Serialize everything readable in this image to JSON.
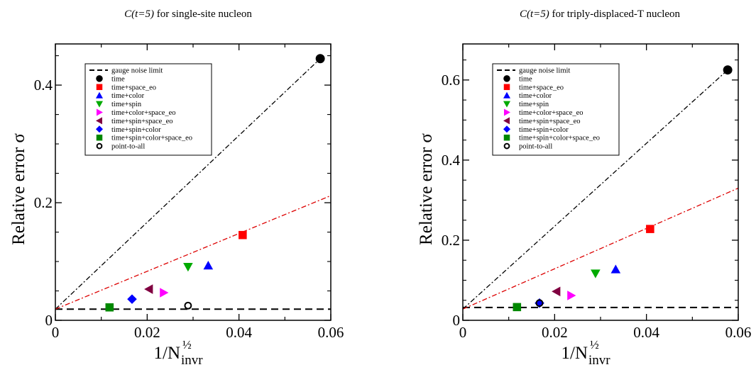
{
  "chart_data": [
    {
      "type": "scatter",
      "title": {
        "italic": "C(t=5)",
        "rest": " for single-site nucleon"
      },
      "xlabel": {
        "main": "1/N",
        "sup": "½",
        "sub": "invr"
      },
      "ylabel": {
        "main": "Relative error",
        "symbol": "σ"
      },
      "xlim": [
        0,
        0.06
      ],
      "ylim": [
        0,
        0.47
      ],
      "xticks": [
        "0",
        "0.02",
        "0.04",
        "0.06"
      ],
      "xtick_values": [
        0,
        0.02,
        0.04,
        0.06
      ],
      "yticks": [
        "0",
        "0.2",
        "0.4"
      ],
      "ytick_values": [
        0,
        0.2,
        0.4
      ],
      "legend_position": "top-left",
      "lines": [
        {
          "name": "gauge noise limit",
          "style": "dashed",
          "color": "#000000",
          "x": [
            0,
            0.06
          ],
          "y": [
            0.019,
            0.019
          ]
        },
        {
          "name": "",
          "style": "dashdot",
          "color": "#000000",
          "x": [
            0,
            0.0577
          ],
          "y": [
            0.019,
            0.445
          ]
        },
        {
          "name": "",
          "style": "dashdot",
          "color": "#dd0000",
          "x": [
            0,
            0.06
          ],
          "y": [
            0.019,
            0.212
          ]
        }
      ],
      "series": [
        {
          "name": "time",
          "marker": "circle",
          "color": "#000000",
          "x": [
            0.0577
          ],
          "y": [
            0.445
          ]
        },
        {
          "name": "time+space_eo",
          "marker": "square",
          "color": "#ff0000",
          "x": [
            0.0408
          ],
          "y": [
            0.145
          ]
        },
        {
          "name": "time+color",
          "marker": "triangle-up",
          "color": "#0000ff",
          "x": [
            0.0333
          ],
          "y": [
            0.093
          ]
        },
        {
          "name": "time+spin",
          "marker": "triangle-down",
          "color": "#00aa00",
          "x": [
            0.0289
          ],
          "y": [
            0.091
          ]
        },
        {
          "name": "time+color+space_eo",
          "marker": "triangle-right",
          "color": "#ff00ff",
          "x": [
            0.0236
          ],
          "y": [
            0.047
          ]
        },
        {
          "name": "time+spin+space_eo",
          "marker": "triangle-left",
          "color": "#800040",
          "x": [
            0.0204
          ],
          "y": [
            0.053
          ]
        },
        {
          "name": "time+spin+color",
          "marker": "diamond",
          "color": "#0000ff",
          "x": [
            0.0167
          ],
          "y": [
            0.036
          ]
        },
        {
          "name": "time+spin+color+space_eo",
          "marker": "square",
          "color": "#008800",
          "x": [
            0.0118
          ],
          "y": [
            0.022
          ]
        },
        {
          "name": "point-to-all",
          "marker": "circle-open",
          "color": "#000000",
          "x": [
            0.0289
          ],
          "y": [
            0.025
          ]
        }
      ]
    },
    {
      "type": "scatter",
      "title": {
        "italic": "C(t=5)",
        "rest": " for triply-displaced-T nucleon"
      },
      "xlabel": {
        "main": "1/N",
        "sup": "½",
        "sub": "invr"
      },
      "ylabel": {
        "main": "Relative error",
        "symbol": "σ"
      },
      "xlim": [
        0,
        0.06
      ],
      "ylim": [
        0,
        0.69
      ],
      "xticks": [
        "0",
        "0.02",
        "0.04",
        "0.06"
      ],
      "xtick_values": [
        0,
        0.02,
        0.04,
        0.06
      ],
      "yticks": [
        "0",
        "0.2",
        "0.4",
        "0.6"
      ],
      "ytick_values": [
        0,
        0.2,
        0.4,
        0.6
      ],
      "legend_position": "top-left",
      "lines": [
        {
          "name": "gauge noise limit",
          "style": "dashed",
          "color": "#000000",
          "x": [
            0,
            0.06
          ],
          "y": [
            0.032,
            0.032
          ]
        },
        {
          "name": "",
          "style": "dashdot",
          "color": "#000000",
          "x": [
            0,
            0.0577
          ],
          "y": [
            0.028,
            0.625
          ]
        },
        {
          "name": "",
          "style": "dashdot",
          "color": "#dd0000",
          "x": [
            0,
            0.06
          ],
          "y": [
            0.028,
            0.33
          ]
        }
      ],
      "series": [
        {
          "name": "time",
          "marker": "circle",
          "color": "#000000",
          "x": [
            0.0577
          ],
          "y": [
            0.625
          ]
        },
        {
          "name": "time+space_eo",
          "marker": "square",
          "color": "#ff0000",
          "x": [
            0.0408
          ],
          "y": [
            0.228
          ]
        },
        {
          "name": "time+color",
          "marker": "triangle-up",
          "color": "#0000ff",
          "x": [
            0.0333
          ],
          "y": [
            0.127
          ]
        },
        {
          "name": "time+spin",
          "marker": "triangle-down",
          "color": "#00aa00",
          "x": [
            0.0289
          ],
          "y": [
            0.117
          ]
        },
        {
          "name": "time+color+space_eo",
          "marker": "triangle-right",
          "color": "#ff00ff",
          "x": [
            0.0236
          ],
          "y": [
            0.062
          ]
        },
        {
          "name": "time+spin+space_eo",
          "marker": "triangle-left",
          "color": "#800040",
          "x": [
            0.0204
          ],
          "y": [
            0.072
          ]
        },
        {
          "name": "time+spin+color",
          "marker": "diamond",
          "color": "#0000ff",
          "x": [
            0.0167
          ],
          "y": [
            0.043
          ]
        },
        {
          "name": "time+spin+color+space_eo",
          "marker": "square",
          "color": "#008800",
          "x": [
            0.0118
          ],
          "y": [
            0.033
          ]
        },
        {
          "name": "point-to-all",
          "marker": "circle-open",
          "color": "#000000",
          "x": [
            0.0167
          ],
          "y": [
            0.043
          ]
        }
      ]
    }
  ]
}
